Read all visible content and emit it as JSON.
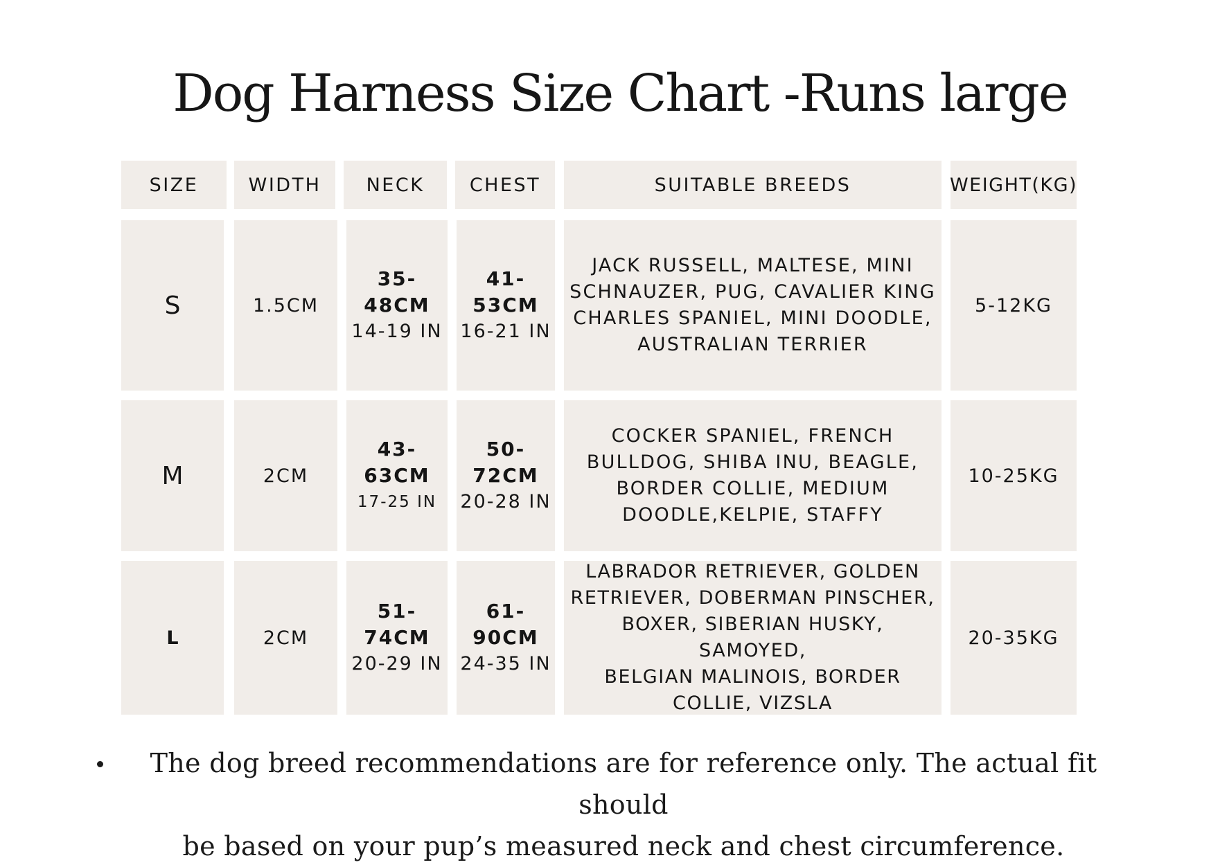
{
  "title": "Dog Harness Size Chart -Runs large",
  "table": {
    "headers": [
      "SIZE",
      "WIDTH",
      "NECK",
      "CHEST",
      "SUITABLE BREEDS",
      "WEIGHT(KG)"
    ],
    "rows": [
      {
        "size": "S",
        "width": "1.5CM",
        "neck_cm": "35-48CM",
        "neck_in": "14-19 IN",
        "chest_cm": "41-53CM",
        "chest_in": "16-21 IN",
        "breeds": [
          "JACK RUSSELL, MALTESE, MINI",
          "SCHNAUZER, PUG, CAVALIER KING",
          "CHARLES SPANIEL, MINI DOODLE,",
          "AUSTRALIAN TERRIER"
        ],
        "weight": "5-12KG"
      },
      {
        "size": "M",
        "width": "2CM",
        "neck_cm": "43-63CM",
        "neck_in": "17-25 IN",
        "chest_cm": "50-72CM",
        "chest_in": "20-28 IN",
        "breeds": [
          "COCKER SPANIEL, FRENCH",
          "BULLDOG, SHIBA INU, BEAGLE,",
          "BORDER COLLIE, MEDIUM",
          "DOODLE,KELPIE, STAFFY"
        ],
        "weight": "10-25KG"
      },
      {
        "size": "L",
        "width": "2CM",
        "neck_cm": "51-74CM",
        "neck_in": "20-29 IN",
        "chest_cm": "61-90CM",
        "chest_in": "24-35 IN",
        "breeds": [
          "LABRADOR RETRIEVER, GOLDEN",
          "RETRIEVER, DOBERMAN PINSCHER,",
          "BOXER, SIBERIAN HUSKY, SAMOYED,",
          "BELGIAN MALINOIS, BORDER",
          "COLLIE, VIZSLA"
        ],
        "weight": "20-35KG"
      }
    ]
  },
  "note": {
    "line1": "The dog breed recommendations are for reference only. The actual fit should",
    "line2": "be based on your pup’s measured neck and chest circumference."
  },
  "colors": {
    "cell_bg": "#f1ede9",
    "text": "#151515"
  }
}
